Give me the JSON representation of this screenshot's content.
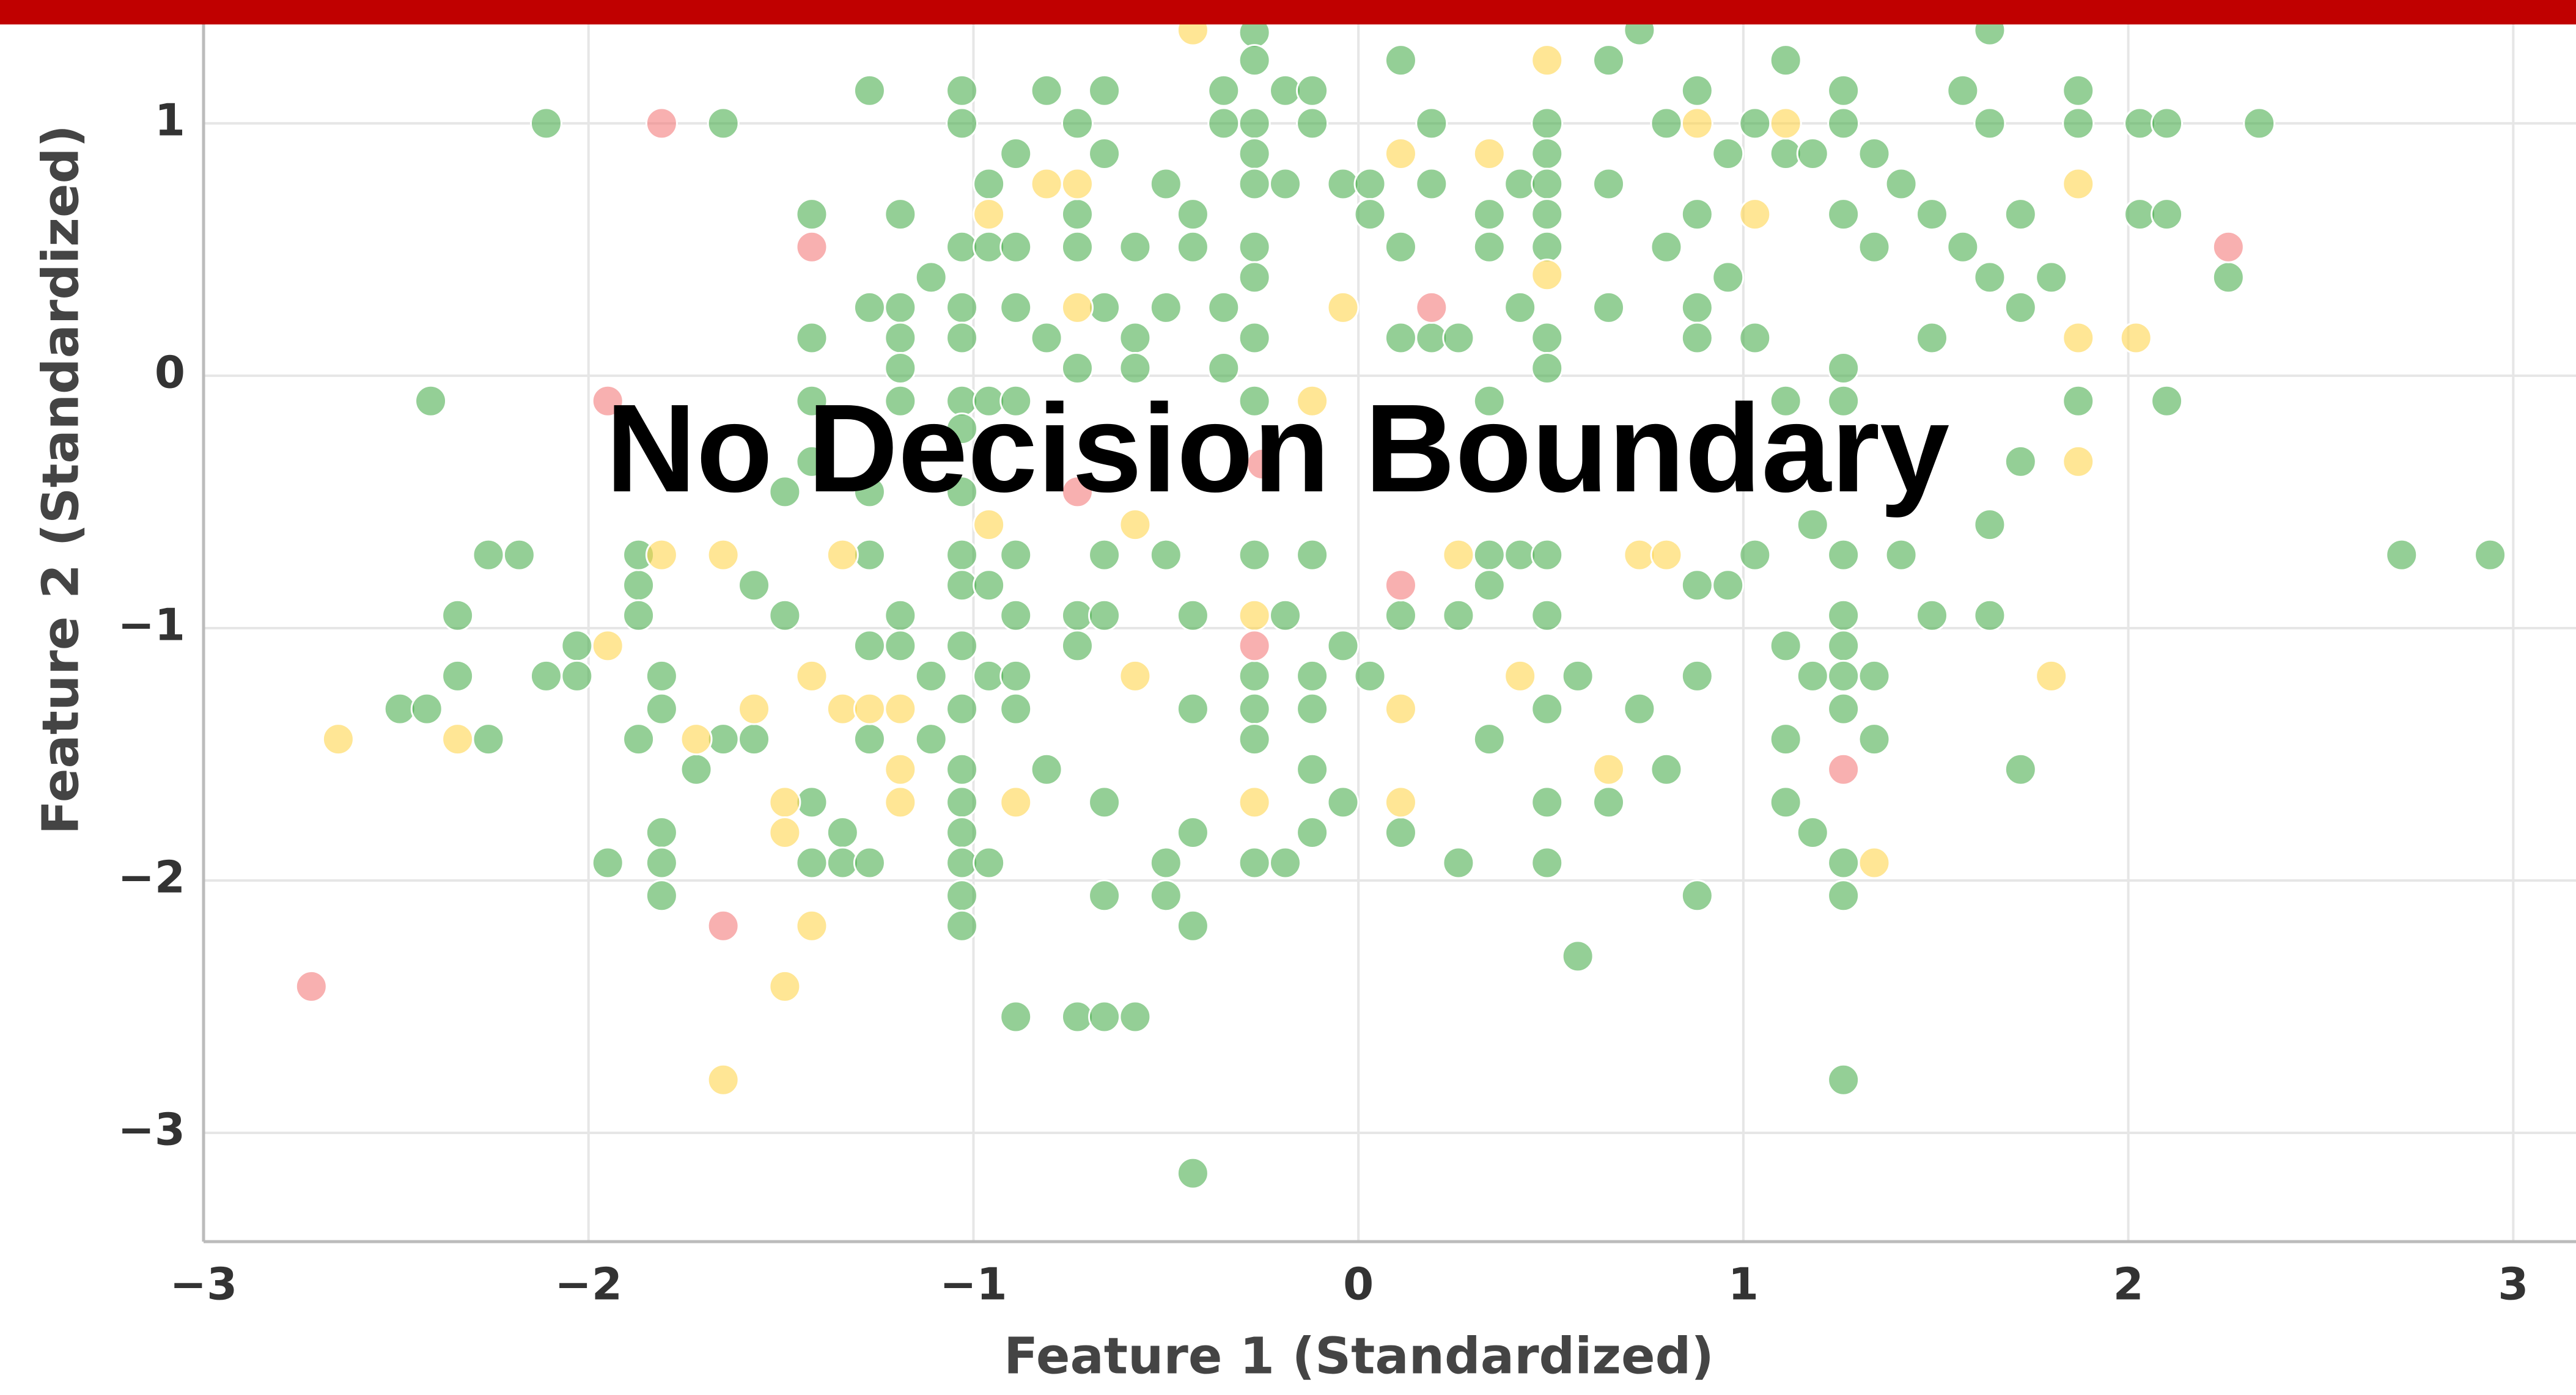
{
  "chart_data": {
    "type": "scatter",
    "annotation": "No Decision Boundary",
    "xlabel": "Feature 1 (Standardized)",
    "ylabel": "Feature 2 (Standardized)",
    "xlim": [
      -3,
      3.163
    ],
    "ylim": [
      -3.431,
      1.392
    ],
    "xticks": [
      {
        "value": -3,
        "label": "−3"
      },
      {
        "value": -2,
        "label": "−2"
      },
      {
        "value": -1,
        "label": "−1"
      },
      0,
      1,
      2,
      3
    ],
    "yticks": [
      {
        "value": -3,
        "label": "−3"
      },
      {
        "value": -2,
        "label": "−2"
      },
      {
        "value": -1,
        "label": "−1"
      },
      0,
      1
    ],
    "grid": true,
    "series": [
      {
        "color": "#4caf50",
        "x": [
          -2.11,
          -1.65,
          -2.41,
          -2.26,
          -2.18,
          -2.34,
          -2.34,
          -2.49,
          -2.42,
          -2.26,
          -2.11,
          -2.03,
          -2.03,
          -1.95,
          -1.87,
          -1.87,
          -1.87,
          -1.81,
          -1.81,
          -1.81,
          -1.81,
          -1.81,
          -1.87,
          -1.72,
          -1.65,
          -1.57,
          -1.57,
          -1.49,
          -1.49,
          -1.42,
          -1.42,
          -1.42,
          -1.42,
          -1.42,
          -1.42,
          -1.34,
          -1.34,
          -1.27,
          -1.27,
          -1.27,
          -1.27,
          -1.27,
          -1.27,
          -1.27,
          -1.19,
          -1.19,
          -1.19,
          -1.19,
          -1.19,
          -1.19,
          -1.19,
          -1.11,
          -1.11,
          -1.11,
          -1.03,
          -1.03,
          -1.03,
          -1.03,
          -1.03,
          -1.03,
          -1.03,
          -1.03,
          -1.03,
          -1.03,
          -1.03,
          -1.03,
          -1.03,
          -1.03,
          -1.03,
          -1.03,
          -1.03,
          -1.03,
          -0.96,
          -0.96,
          -0.96,
          -0.96,
          -0.96,
          -0.96,
          -0.89,
          -0.89,
          -0.89,
          -0.89,
          -0.89,
          -0.89,
          -0.89,
          -0.89,
          -0.89,
          -0.81,
          -0.81,
          -0.81,
          -0.73,
          -0.73,
          -0.73,
          -0.73,
          -0.73,
          -0.73,
          -0.73,
          -0.66,
          -0.66,
          -0.66,
          -0.66,
          -0.66,
          -0.66,
          -0.66,
          -0.66,
          -0.58,
          -0.58,
          -0.58,
          -0.58,
          -0.5,
          -0.5,
          -0.5,
          -0.5,
          -0.5,
          -0.43,
          -0.43,
          -0.43,
          -0.43,
          -0.43,
          -0.43,
          -0.43,
          -0.35,
          -0.35,
          -0.35,
          -0.35,
          -0.27,
          -0.27,
          -0.27,
          -0.27,
          -0.27,
          -0.27,
          -0.27,
          -0.27,
          -0.27,
          -0.27,
          -0.27,
          -0.27,
          -0.27,
          -0.27,
          -0.19,
          -0.19,
          -0.19,
          -0.19,
          -0.12,
          -0.12,
          -0.12,
          -0.12,
          -0.12,
          -0.12,
          -0.12,
          -0.04,
          -0.04,
          -0.04,
          0.03,
          0.03,
          0.03,
          0.11,
          0.11,
          0.11,
          0.11,
          0.11,
          0.19,
          0.19,
          0.19,
          0.26,
          0.26,
          0.26,
          0.34,
          0.34,
          0.34,
          0.34,
          0.34,
          0.34,
          0.42,
          0.42,
          0.42,
          0.49,
          0.49,
          0.49,
          0.49,
          0.49,
          0.49,
          0.49,
          0.49,
          0.49,
          0.49,
          0.49,
          0.49,
          0.57,
          0.57,
          0.65,
          0.65,
          0.65,
          0.65,
          0.73,
          0.73,
          0.8,
          0.8,
          0.8,
          0.88,
          0.88,
          0.88,
          0.88,
          0.88,
          0.88,
          0.88,
          0.96,
          0.96,
          0.96,
          1.03,
          1.03,
          1.03,
          1.11,
          1.11,
          1.11,
          1.11,
          1.11,
          1.11,
          1.18,
          1.18,
          1.18,
          1.18,
          1.26,
          1.26,
          1.26,
          1.26,
          1.26,
          1.26,
          1.26,
          1.26,
          1.26,
          1.26,
          1.26,
          1.26,
          1.26,
          1.34,
          1.34,
          1.34,
          1.34,
          1.41,
          1.41,
          1.49,
          1.49,
          1.49,
          1.57,
          1.57,
          1.64,
          1.64,
          1.64,
          1.64,
          1.64,
          1.72,
          1.72,
          1.72,
          1.72,
          1.8,
          1.87,
          1.87,
          1.87,
          2.03,
          2.1,
          2.03,
          2.1,
          2.1,
          2.26,
          2.34,
          2.71,
          2.94
        ],
        "y": [
          1.0,
          1.0,
          -0.1,
          -0.71,
          -0.71,
          -0.95,
          -1.19,
          -1.32,
          -1.32,
          -1.44,
          -1.19,
          -1.07,
          -1.19,
          -1.93,
          -0.83,
          -0.95,
          -0.71,
          -1.19,
          -1.32,
          -1.81,
          -1.93,
          -2.06,
          -1.44,
          -1.56,
          -1.44,
          -1.44,
          -0.83,
          -0.95,
          -0.46,
          0.64,
          0.15,
          -0.1,
          -0.34,
          -1.69,
          -1.93,
          -1.81,
          -1.93,
          -1.93,
          1.13,
          0.27,
          -0.46,
          -0.71,
          -1.07,
          -1.44,
          0.64,
          0.27,
          0.15,
          0.03,
          -0.1,
          -0.95,
          -1.07,
          -1.19,
          -1.44,
          0.39,
          1.13,
          1.0,
          0.51,
          0.27,
          0.15,
          -0.1,
          -0.21,
          -0.46,
          -0.71,
          -0.83,
          -1.07,
          -1.32,
          -1.56,
          -1.69,
          -1.81,
          -1.93,
          -2.06,
          -2.18,
          0.76,
          0.51,
          -0.1,
          -0.83,
          -1.19,
          -1.93,
          0.88,
          0.51,
          0.27,
          -0.1,
          -0.71,
          -0.95,
          -1.19,
          -1.32,
          -2.54,
          -1.56,
          1.13,
          0.15,
          0.64,
          1.0,
          0.51,
          0.03,
          -0.95,
          -1.07,
          -2.54,
          1.13,
          0.88,
          0.27,
          -0.71,
          -0.95,
          -1.69,
          -2.06,
          -2.54,
          -2.54,
          0.51,
          0.15,
          0.03,
          0.76,
          0.27,
          -0.71,
          -1.93,
          -2.06,
          0.64,
          0.51,
          -0.95,
          -1.32,
          -1.81,
          -2.18,
          -3.16,
          1.13,
          1.0,
          0.27,
          0.03,
          1.36,
          1.25,
          1.0,
          0.88,
          0.76,
          0.51,
          0.39,
          0.15,
          -0.1,
          -0.71,
          -1.19,
          -1.32,
          -1.44,
          -1.93,
          1.13,
          0.76,
          -0.95,
          -1.93,
          1.13,
          1.0,
          -0.71,
          -1.19,
          -1.32,
          -1.56,
          -1.81,
          0.76,
          -1.07,
          -1.69,
          0.76,
          0.64,
          -1.19,
          1.25,
          0.51,
          0.15,
          -0.95,
          -1.81,
          1.0,
          0.76,
          0.15,
          0.15,
          -1.93,
          -0.95,
          0.64,
          0.51,
          -0.1,
          -0.71,
          -0.83,
          -1.44,
          0.76,
          0.27,
          -0.71,
          1.0,
          0.88,
          0.76,
          0.64,
          0.51,
          0.15,
          0.03,
          -0.71,
          -0.95,
          -1.32,
          -1.69,
          -1.93,
          -2.3,
          -1.19,
          1.25,
          0.76,
          0.27,
          -1.69,
          1.37,
          -1.32,
          1.0,
          0.51,
          -1.56,
          1.13,
          0.64,
          0.27,
          0.15,
          -0.83,
          -1.19,
          -2.06,
          0.88,
          0.39,
          -0.83,
          1.0,
          0.15,
          -0.71,
          1.25,
          0.88,
          -0.1,
          -1.07,
          -1.44,
          -1.69,
          0.88,
          -0.59,
          -1.19,
          -1.81,
          1.13,
          1.0,
          0.64,
          0.03,
          -0.1,
          -0.71,
          -0.95,
          -1.07,
          -1.19,
          -1.32,
          -1.93,
          -2.06,
          -2.79,
          0.88,
          0.51,
          -1.19,
          -1.44,
          0.76,
          -0.71,
          0.64,
          0.15,
          -0.95,
          1.13,
          0.51,
          1.37,
          1.0,
          0.39,
          -0.59,
          -0.95,
          0.64,
          0.27,
          -0.34,
          -1.56,
          0.39,
          1.13,
          1.0,
          -0.1,
          1.0,
          1.0,
          0.64,
          0.64,
          -0.1,
          0.39,
          1.0,
          -0.71,
          -0.71
        ]
      },
      {
        "color": "#ffd54f",
        "x": [
          -0.43,
          0.49,
          0.88,
          1.11,
          0.34,
          0.11,
          -0.81,
          -0.73,
          -0.96,
          1.03,
          1.87,
          1.87,
          2.02,
          -0.04,
          -0.73,
          -0.12,
          1.87,
          -1.81,
          -1.65,
          -1.34,
          -0.96,
          -0.58,
          0.26,
          0.73,
          0.8,
          -0.27,
          -1.95,
          -0.58,
          0.42,
          1.8,
          -1.42,
          -1.34,
          -1.27,
          -1.19,
          -1.57,
          0.11,
          -2.65,
          -2.34,
          -1.72,
          -1.19,
          0.65,
          -1.49,
          -1.19,
          -0.89,
          -0.27,
          0.11,
          -1.49,
          1.34,
          -1.42,
          -1.49,
          -1.65,
          0.49
        ],
        "y": [
          1.37,
          1.25,
          1.0,
          1.0,
          0.88,
          0.88,
          0.76,
          0.76,
          0.64,
          0.64,
          0.76,
          0.15,
          0.15,
          0.27,
          0.27,
          -0.1,
          -0.34,
          -0.71,
          -0.71,
          -0.71,
          -0.59,
          -0.59,
          -0.71,
          -0.71,
          -0.71,
          -0.95,
          -1.07,
          -1.19,
          -1.19,
          -1.19,
          -1.19,
          -1.32,
          -1.32,
          -1.32,
          -1.32,
          -1.32,
          -1.44,
          -1.44,
          -1.44,
          -1.56,
          -1.56,
          -1.69,
          -1.69,
          -1.69,
          -1.69,
          -1.69,
          -1.81,
          -1.93,
          -2.18,
          -2.42,
          -2.79,
          0.4
        ]
      },
      {
        "color": "#f47c7c",
        "x": [
          -1.81,
          -1.42,
          -1.95,
          -2.72,
          -1.65,
          0.11,
          -0.27,
          1.26,
          2.26,
          0.19,
          -0.73,
          -0.25
        ],
        "y": [
          1.0,
          0.51,
          -0.1,
          -2.42,
          -2.18,
          -0.83,
          -1.07,
          -1.56,
          0.51,
          0.27,
          -0.46,
          -0.35
        ]
      }
    ]
  }
}
